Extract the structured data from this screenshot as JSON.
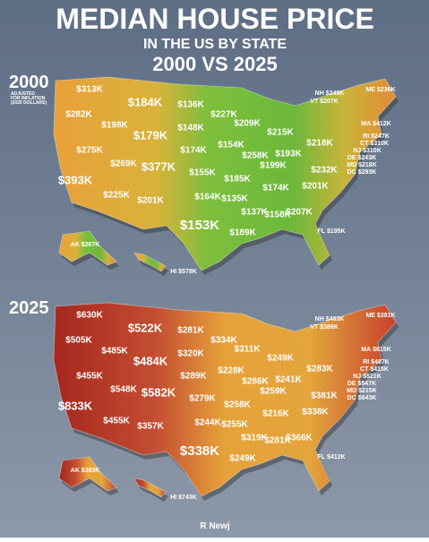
{
  "header": {
    "title": "MEDIAN HOUSE PRICE",
    "subtitle": "IN THE US BY STATE",
    "comparison": "2000 VS 2025"
  },
  "maps": [
    {
      "year": "2000",
      "note": [
        "ADJUSTED",
        "FOR INFLATION",
        "(2025 DOLLARS)"
      ],
      "prices": [
        "$313K",
        "$282K",
        "$198K",
        "$184K",
        "$136K",
        "$148K",
        "$179K",
        "$275K",
        "$269K",
        "$377K",
        "$393K",
        "$225K",
        "$201K",
        "$227K",
        "$209K",
        "$174K",
        "$154K",
        "$155K",
        "$164K",
        "$153K",
        "$185K",
        "$258K",
        "$215K",
        "$193K",
        "$199K",
        "$135K",
        "$174K",
        "$137K",
        "$158K",
        "$189K",
        "$207K",
        "$201K",
        "$232K",
        "$218K"
      ],
      "callouts": [
        {
          "state": "ME",
          "price": "$236K"
        },
        {
          "state": "NH",
          "price": "$249K"
        },
        {
          "state": "VT",
          "price": "$207K"
        },
        {
          "state": "MA",
          "price": "$412K"
        },
        {
          "state": "RI",
          "price": "$247K"
        },
        {
          "state": "CT",
          "price": "$310K"
        },
        {
          "state": "NJ",
          "price": "$310K"
        },
        {
          "state": "DE",
          "price": "$243K"
        },
        {
          "state": "MD",
          "price": "$218K"
        },
        {
          "state": "DC",
          "price": "$293K"
        },
        {
          "state": "FL",
          "price": "$195K"
        },
        {
          "state": "AK",
          "price": "$267K"
        },
        {
          "state": "HI",
          "price": "$578K"
        }
      ]
    },
    {
      "year": "2025",
      "prices": [
        "$630K",
        "$505K",
        "$485K",
        "$522K",
        "$281K",
        "$320K",
        "$484K",
        "$455K",
        "$548K",
        "$582K",
        "$833K",
        "$455K",
        "$357K",
        "$334K",
        "$311K",
        "$289K",
        "$228K",
        "$279K",
        "$244K",
        "$338K",
        "$258K",
        "$286K",
        "$249K",
        "$241K",
        "$259K",
        "$255K",
        "$216K",
        "$319K",
        "$281K",
        "$249K",
        "$366K",
        "$338K",
        "$381K",
        "$283K"
      ],
      "callouts": [
        {
          "state": "ME",
          "price": "$381K"
        },
        {
          "state": "NH",
          "price": "$483K"
        },
        {
          "state": "VT",
          "price": "$388K"
        },
        {
          "state": "MA",
          "price": "$615K"
        },
        {
          "state": "RI",
          "price": "$487K"
        },
        {
          "state": "CT",
          "price": "$415K"
        },
        {
          "state": "NJ",
          "price": "$521K"
        },
        {
          "state": "DE",
          "price": "$547K"
        },
        {
          "state": "MD",
          "price": "$215K"
        },
        {
          "state": "DC",
          "price": "$643K"
        },
        {
          "state": "FL",
          "price": "$412K"
        },
        {
          "state": "AK",
          "price": "$383K"
        },
        {
          "state": "HI",
          "price": "$743K"
        }
      ]
    }
  ],
  "footer": "R Newj"
}
